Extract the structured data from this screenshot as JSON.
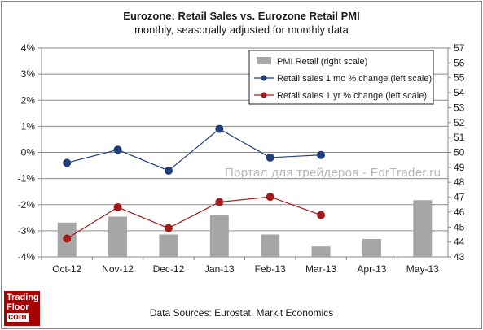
{
  "title": "Eurozone: Retail Sales vs. Eurozone Retail PMI",
  "subtitle": "monthly, seasonally adjusted for monthly data",
  "watermark": "Портал для трейдеров - ForTrader.ru",
  "source": "Data Sources: Eurostat, Markit Economics",
  "logo": {
    "line1": "Trading",
    "line2": "Floor",
    "line3": "com"
  },
  "chart_data": {
    "type": "bar+line",
    "categories": [
      "Oct-12",
      "Nov-12",
      "Dec-12",
      "Jan-13",
      "Feb-13",
      "Mar-13",
      "Apr-13",
      "May-13"
    ],
    "left_axis": {
      "min": -4,
      "max": 4,
      "step": 1,
      "suffix": "%"
    },
    "right_axis": {
      "min": 43,
      "max": 57,
      "step": 1
    },
    "series": [
      {
        "name": "PMI Retail (right scale)",
        "kind": "bar",
        "axis": "right",
        "color": "#a6a6a6",
        "values": [
          45.3,
          45.7,
          44.5,
          45.8,
          44.5,
          43.7,
          44.2,
          46.8
        ]
      },
      {
        "name": "Retail sales 1 mo % change (left scale)",
        "kind": "line",
        "axis": "left",
        "color": "#1f3e7a",
        "values": [
          -0.4,
          0.1,
          -0.7,
          0.9,
          -0.2,
          -0.1,
          null,
          null
        ]
      },
      {
        "name": "Retail sales 1 yr % change (left scale)",
        "kind": "line",
        "axis": "left",
        "color": "#a31b1b",
        "values": [
          -3.3,
          -2.1,
          -2.9,
          -1.9,
          -1.7,
          -2.4,
          null,
          null
        ]
      }
    ],
    "legend_position": "top-right",
    "grid": true
  }
}
